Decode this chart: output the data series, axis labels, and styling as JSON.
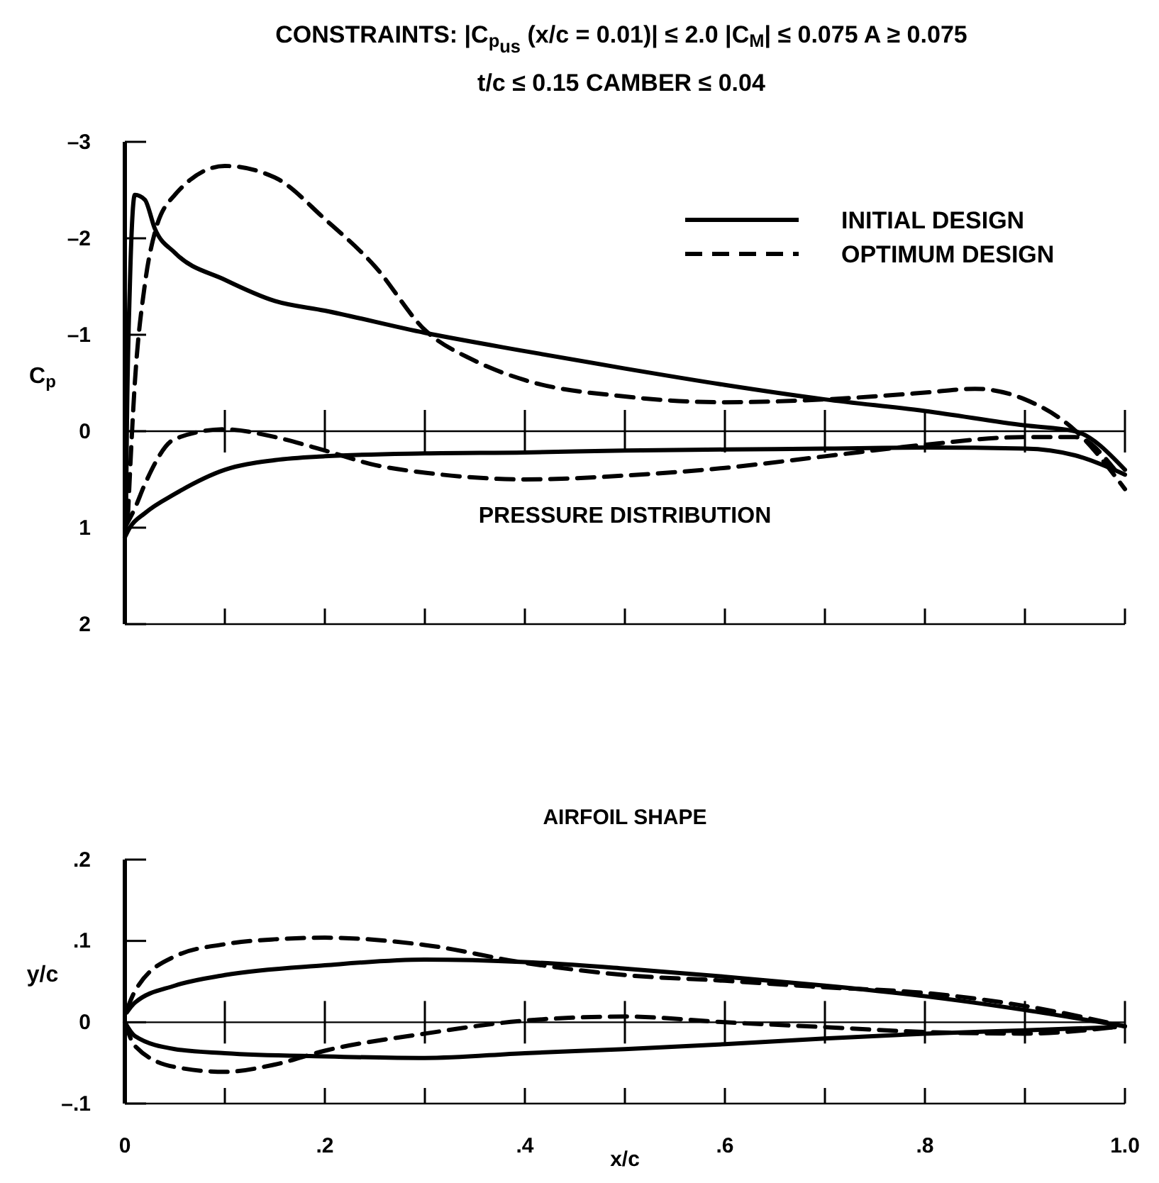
{
  "chart_data": [
    {
      "type": "line",
      "title": "CONSTRAINTS: |C$_{p}$$_{us}$ (x/c = 0.01)| ≤ 2.0  |C$_{M}$| ≤ 0.075  A ≥ 0.075",
      "subtitle": "t/c ≤ 0.15  CAMBER ≤ 0.04",
      "ylabel": "C$_{p}$",
      "annotations": [
        "PRESSURE DISTRIBUTION"
      ],
      "legend": "top right",
      "tick_labels": "y",
      "xlim": [
        0,
        1
      ],
      "xticks": [
        {
          "value": 0,
          "label": null
        },
        {
          "value": 0.1,
          "label": null
        },
        {
          "value": 0.2,
          "label": null
        },
        {
          "value": 0.3,
          "label": null
        },
        {
          "value": 0.4,
          "label": null
        },
        {
          "value": 0.5,
          "label": null
        },
        {
          "value": 0.6,
          "label": null
        },
        {
          "value": 0.7,
          "label": null
        },
        {
          "value": 0.8,
          "label": null
        },
        {
          "value": 0.9,
          "label": null
        },
        {
          "value": 1,
          "label": null
        }
      ],
      "ylim": [
        2,
        -3
      ],
      "yticks": [
        {
          "value": -3,
          "label": "–3"
        },
        {
          "value": -2,
          "label": "–2"
        },
        {
          "value": -1,
          "label": "–1"
        },
        0,
        1,
        2
      ],
      "ref_lines": [
        {
          "axis": "y",
          "value": 0
        }
      ],
      "series": [
        {
          "name": "INITIAL DESIGN",
          "color": "#000000",
          "line_style": "solid",
          "x": [
            0.001,
            0.002,
            0.005,
            0.01,
            0.02,
            0.03,
            0.05,
            0.1,
            0.15,
            0.2,
            0.3,
            0.4,
            0.5,
            0.6,
            0.7,
            0.8,
            0.9,
            0.95,
            1.0
          ],
          "values": [
            1.0,
            0,
            -1.5,
            -2.45,
            -2.4,
            -2.1,
            -1.85,
            -1.57,
            -1.35,
            -1.25,
            -1.02,
            -0.83,
            -0.65,
            -0.48,
            -0.33,
            -0.21,
            -0.06,
            0,
            0.4
          ]
        },
        {
          "color": "#000000",
          "line_style": "solid",
          "x": [
            0,
            0.005,
            0.02,
            0.05,
            0.1,
            0.15,
            0.2,
            0.3,
            0.4,
            0.5,
            0.6,
            0.7,
            0.8,
            0.9,
            0.95,
            1.0
          ],
          "values": [
            1.1,
            1.0,
            0.85,
            0.65,
            0.4,
            0.3,
            0.26,
            0.23,
            0.22,
            0.2,
            0.19,
            0.18,
            0.17,
            0.18,
            0.25,
            0.45
          ]
        },
        {
          "name": "OPTIMUM DESIGN",
          "color": "#000000",
          "line_style": "dashed",
          "x": [
            0.003,
            0.01,
            0.02,
            0.03,
            0.05,
            0.1,
            0.15,
            0.2,
            0.25,
            0.3,
            0.35,
            0.4,
            0.5,
            0.6,
            0.7,
            0.8,
            0.85,
            0.9,
            0.95,
            1.0
          ],
          "values": [
            0.9,
            -0.5,
            -1.52,
            -2.06,
            -2.45,
            -2.75,
            -2.63,
            -2.2,
            -1.71,
            -1.05,
            -0.73,
            -0.53,
            -0.36,
            -0.3,
            -0.33,
            -0.4,
            -0.44,
            -0.33,
            -0.01,
            0.6
          ]
        },
        {
          "color": "#000000",
          "line_style": "dashed",
          "x": [
            0,
            0.01,
            0.02,
            0.05,
            0.1,
            0.15,
            0.2,
            0.25,
            0.3,
            0.35,
            0.4,
            0.5,
            0.6,
            0.7,
            0.8,
            0.9,
            0.95,
            0.99
          ],
          "values": [
            1.0,
            0.8,
            0.55,
            0.08,
            -0.02,
            0.06,
            0.2,
            0.35,
            0.43,
            0.48,
            0.5,
            0.46,
            0.38,
            0.26,
            0.14,
            0.06,
            0.06,
            0.4
          ]
        }
      ]
    },
    {
      "type": "line",
      "title": "AIRFOIL SHAPE",
      "xlabel": "x/c",
      "ylabel": "y/c",
      "xlim": [
        0,
        1
      ],
      "xticks": [
        0,
        {
          "value": 0.1,
          "label": null
        },
        {
          "value": 0.2,
          "label": ".2"
        },
        {
          "value": 0.3,
          "label": null
        },
        {
          "value": 0.4,
          "label": ".4"
        },
        {
          "value": 0.5,
          "label": null
        },
        {
          "value": 0.6,
          "label": ".6"
        },
        {
          "value": 0.7,
          "label": null
        },
        {
          "value": 0.8,
          "label": ".8"
        },
        {
          "value": 0.9,
          "label": null
        },
        {
          "value": 1,
          "label": "1.0"
        }
      ],
      "ylim": [
        -0.1,
        0.2
      ],
      "yticks": [
        {
          "value": -0.1,
          "label": "–.1"
        },
        0,
        {
          "value": 0.1,
          "label": ".1"
        },
        {
          "value": 0.2,
          "label": ".2"
        }
      ],
      "ref_lines": [
        {
          "axis": "y",
          "value": 0
        }
      ],
      "series": [
        {
          "color": "#000000",
          "line_style": "solid",
          "x": [
            0.002,
            0.01,
            0.05,
            0.1,
            0.2,
            0.3,
            0.4,
            0.5,
            0.6,
            0.7,
            0.8,
            0.9,
            1.0
          ],
          "values": [
            0.012,
            0.024,
            0.045,
            0.058,
            0.07,
            0.077,
            0.074,
            0.066,
            0.056,
            0.045,
            0.032,
            0.015,
            -0.005
          ]
        },
        {
          "color": "#000000",
          "line_style": "solid",
          "x": [
            0,
            0.01,
            0.05,
            0.1,
            0.2,
            0.3,
            0.4,
            0.5,
            0.6,
            0.7,
            0.8,
            0.9,
            0.99
          ],
          "values": [
            0,
            -0.017,
            -0.033,
            -0.038,
            -0.042,
            -0.044,
            -0.038,
            -0.033,
            -0.027,
            -0.02,
            -0.014,
            -0.01,
            -0.006
          ]
        },
        {
          "color": "#000000",
          "line_style": "dashed",
          "x": [
            0.002,
            0.01,
            0.05,
            0.1,
            0.15,
            0.2,
            0.3,
            0.4,
            0.5,
            0.6,
            0.7,
            0.8,
            0.9,
            1.0
          ],
          "values": [
            0.015,
            0.038,
            0.081,
            0.096,
            0.102,
            0.104,
            0.095,
            0.073,
            0.058,
            0.051,
            0.043,
            0.036,
            0.02,
            -0.005
          ]
        },
        {
          "color": "#000000",
          "line_style": "dashed",
          "x": [
            0,
            0.01,
            0.05,
            0.1,
            0.15,
            0.2,
            0.3,
            0.4,
            0.5,
            0.6,
            0.7,
            0.8,
            0.9,
            0.99
          ],
          "values": [
            0,
            -0.029,
            -0.055,
            -0.061,
            -0.052,
            -0.035,
            -0.014,
            0.002,
            0.007,
            0,
            -0.006,
            -0.012,
            -0.014,
            -0.006
          ]
        }
      ]
    }
  ]
}
